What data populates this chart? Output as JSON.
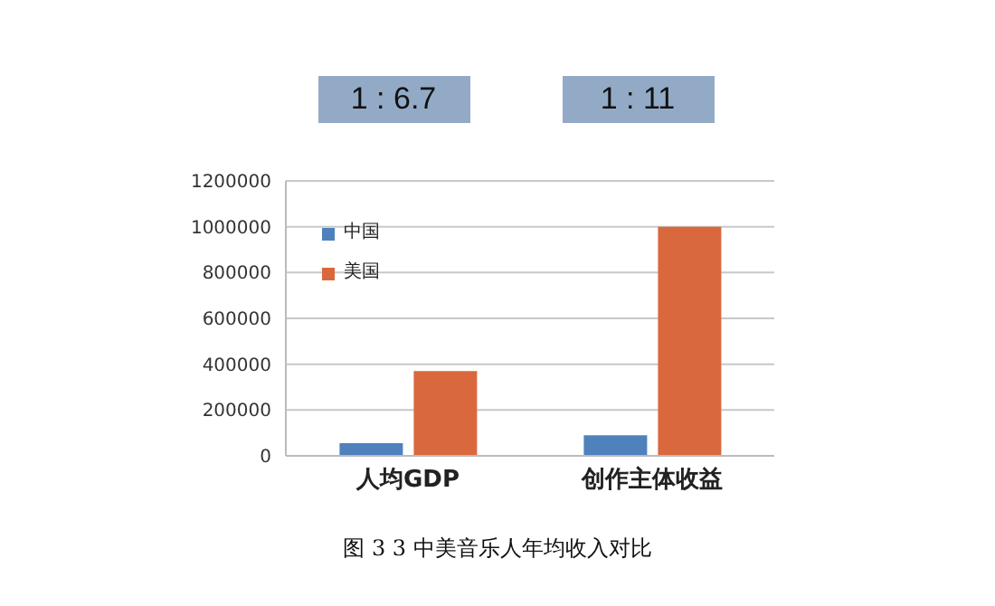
{
  "chart_data": {
    "type": "bar",
    "title": "图 3 3 中美音乐人年均收入对比",
    "categories": [
      "人均GDP",
      "创作主体收益"
    ],
    "series": [
      {
        "name": "中国",
        "color": "#4f81bd",
        "values": [
          55000,
          90000
        ]
      },
      {
        "name": "美国",
        "color": "#d9693d",
        "values": [
          370000,
          1000000
        ]
      }
    ],
    "ylim": [
      0,
      1200000
    ],
    "yticks": [
      0,
      200000,
      400000,
      600000,
      800000,
      1000000,
      1200000
    ],
    "grid": "y",
    "legend": "top left",
    "annotations": [
      "1 : 6.7",
      "1 : 11"
    ]
  }
}
